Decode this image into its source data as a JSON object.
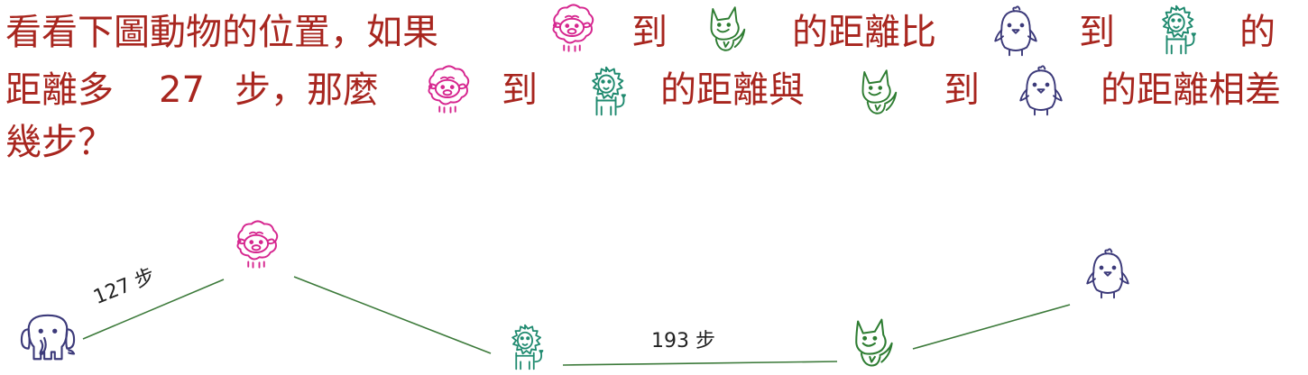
{
  "question": {
    "line1": {
      "a": "看看下圖動物的位置，如果",
      "b": "到",
      "c": "的距離比",
      "d": "到",
      "e": "的"
    },
    "line2": {
      "a": "距離多",
      "num": "27",
      "b": "步，那麼",
      "c": "到",
      "d": "的距離與",
      "e": "到",
      "f": "的距離相差"
    },
    "line3": "幾步？"
  },
  "diagram": {
    "edge_elephant_sheep": "127 步",
    "edge_lion_fox": "193 步"
  },
  "colors": {
    "text": "#a8261f",
    "sheep": "#d6268f",
    "fox": "#2e7d32",
    "lion": "#1f8a6f",
    "chick": "#3c3a7a",
    "elephant": "#3c3a7a",
    "line": "#3c7a3a"
  },
  "icons": [
    "sheep-icon",
    "fox-icon",
    "chick-icon",
    "lion-icon",
    "elephant-icon"
  ]
}
